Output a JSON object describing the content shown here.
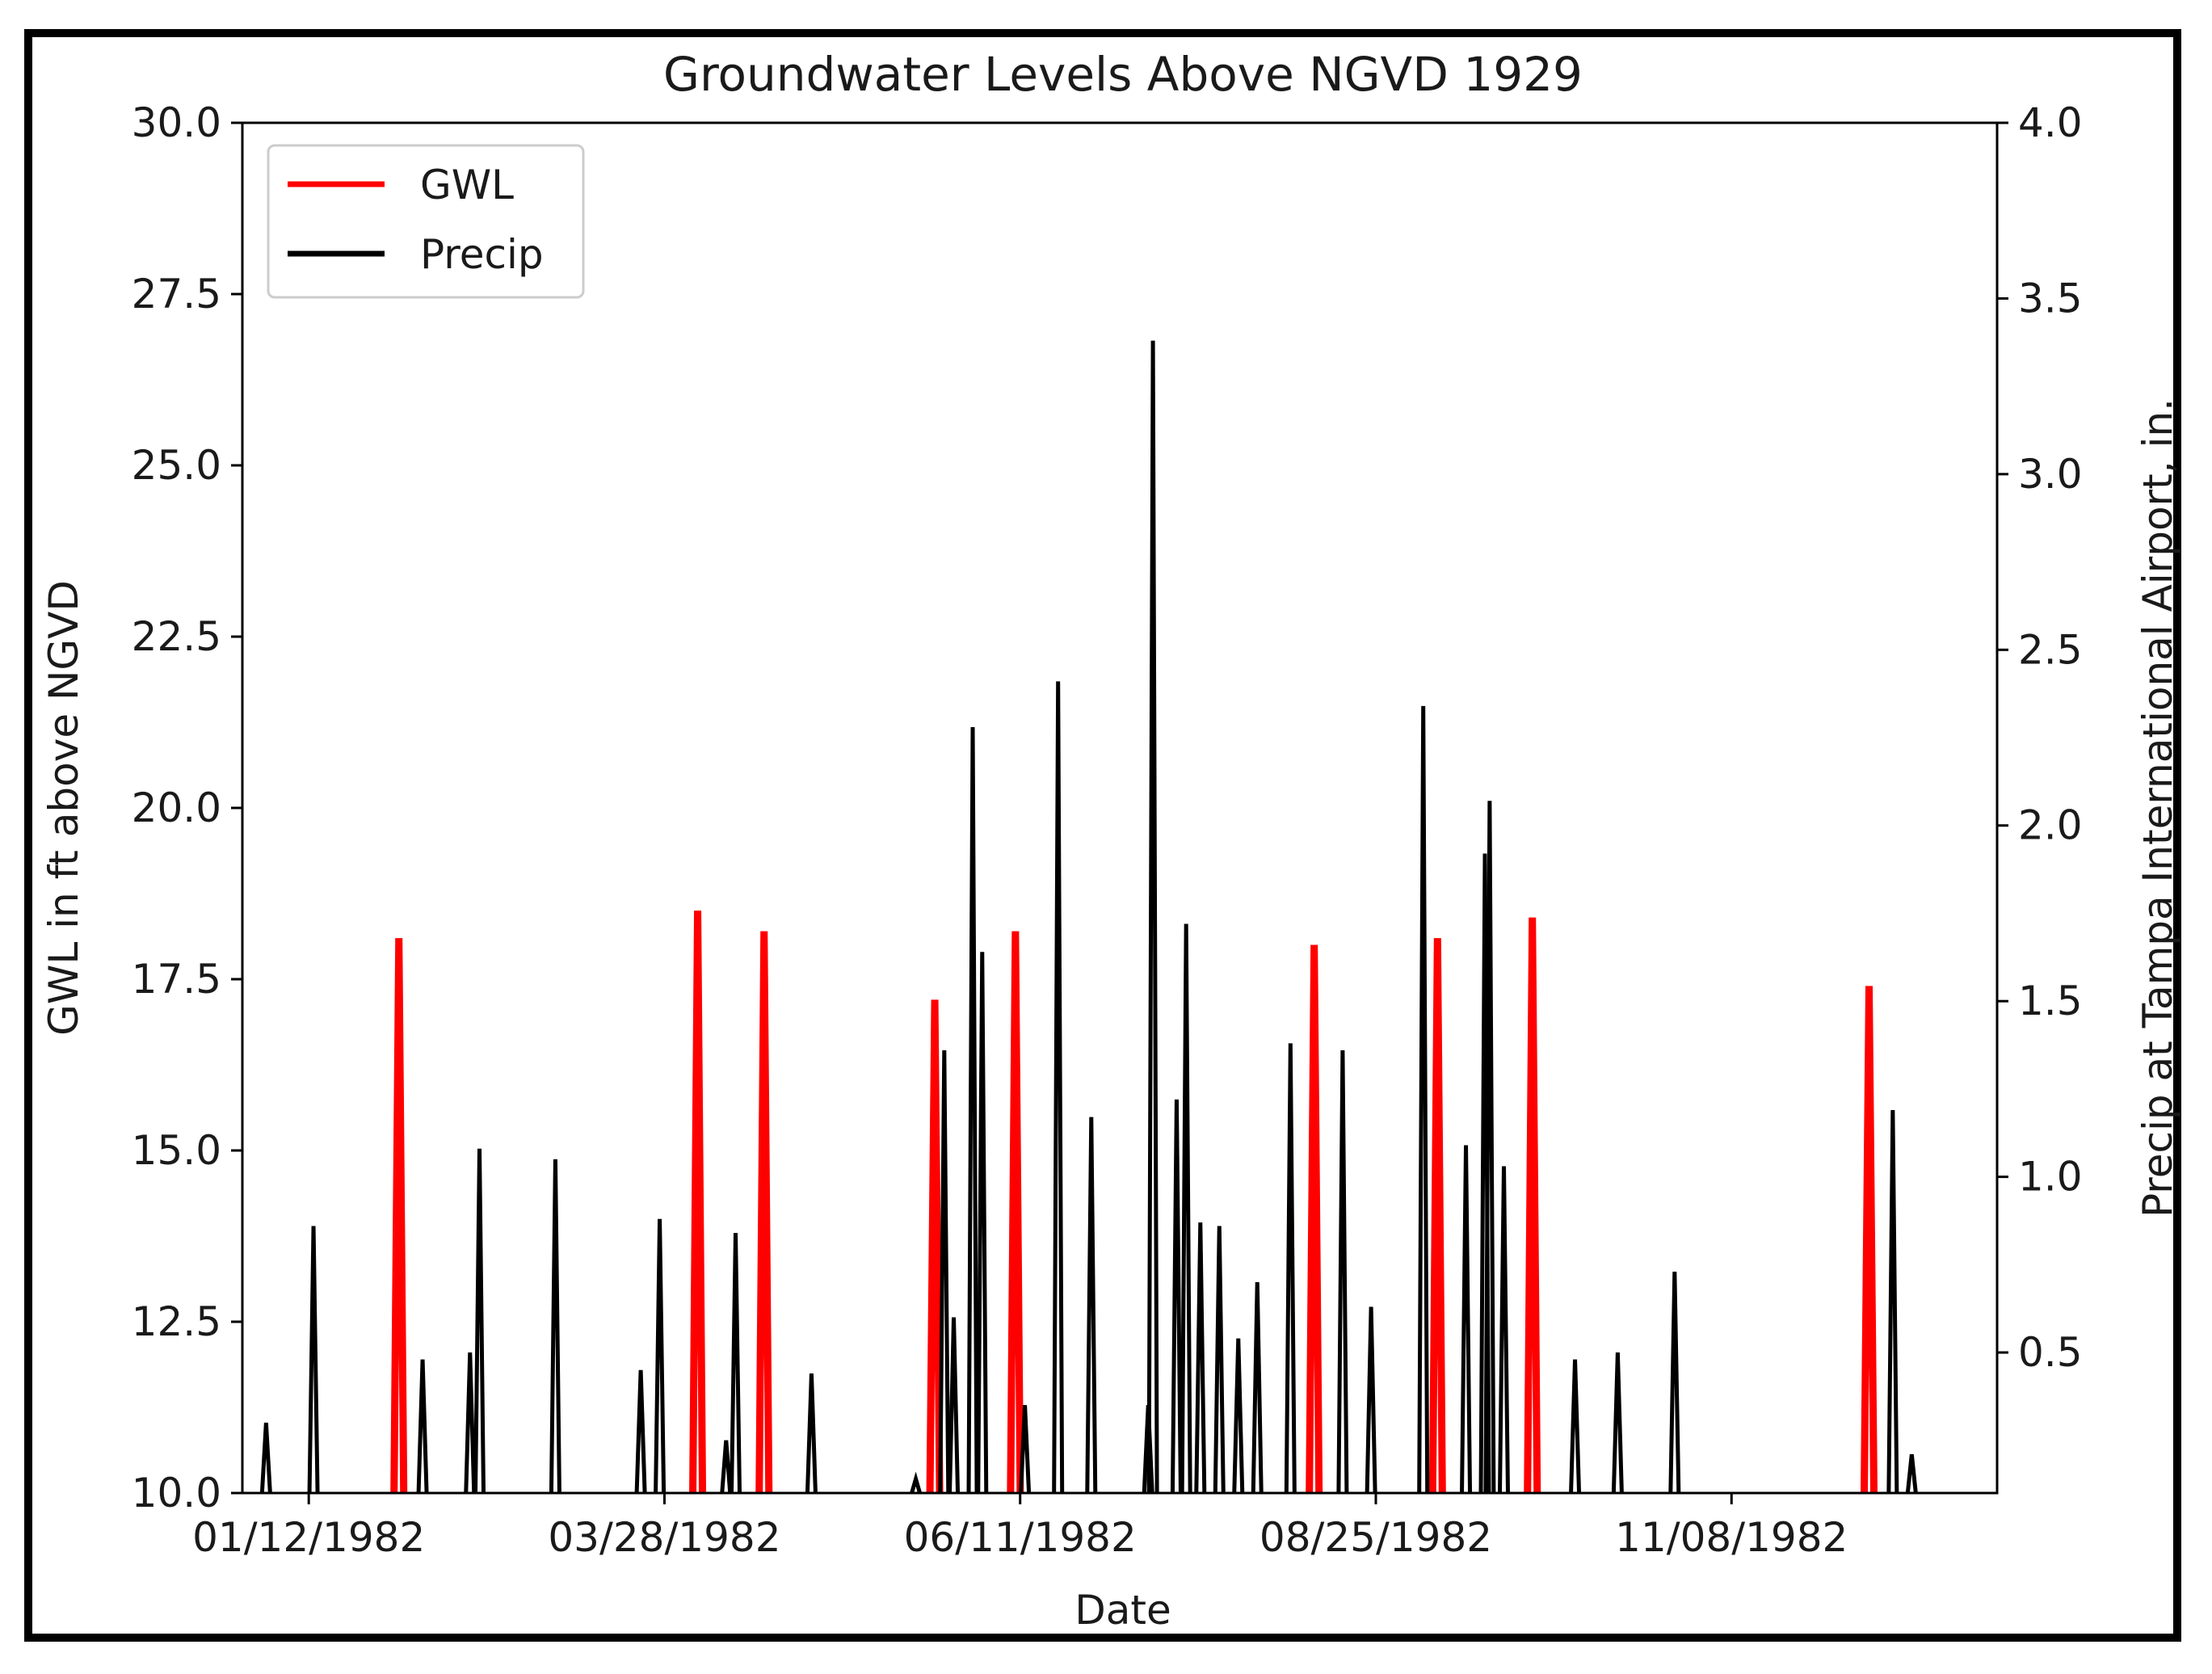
{
  "chart_data": {
    "type": "line",
    "title": "Groundwater Levels Above NGVD 1929",
    "xlabel": "Date",
    "ylabel_left": "GWL in ft above NGVD",
    "ylabel_right": "Precip at Tampa International Airport, in.",
    "x_ticks": [
      "01/12/1982",
      "03/28/1982",
      "06/11/1982",
      "08/25/1982",
      "11/08/1982"
    ],
    "xlim": [
      "1981-12-29",
      "1983-01-03"
    ],
    "ylim_left": [
      10.0,
      30.0
    ],
    "y_ticks_left": [
      "10.0",
      "12.5",
      "15.0",
      "17.5",
      "20.0",
      "22.5",
      "25.0",
      "27.5",
      "30.0"
    ],
    "ylim_right": [
      0.1,
      4.0
    ],
    "y_ticks_right": [
      "0.5",
      "1.0",
      "1.5",
      "2.0",
      "2.5",
      "3.0",
      "3.5",
      "4.0"
    ],
    "legend": {
      "position": "upper left",
      "entries": [
        {
          "label": "GWL",
          "color": "#ff0000"
        },
        {
          "label": "Precip",
          "color": "#000000"
        }
      ]
    },
    "series": [
      {
        "name": "GWL",
        "axis": "left",
        "color": "#ff0000",
        "points": [
          {
            "date": "1982-01-31",
            "value": 18.1
          },
          {
            "date": "1982-04-04",
            "value": 18.5
          },
          {
            "date": "1982-04-18",
            "value": 18.2
          },
          {
            "date": "1982-05-24",
            "value": 17.2
          },
          {
            "date": "1982-06-10",
            "value": 18.2
          },
          {
            "date": "1982-08-12",
            "value": 18.0
          },
          {
            "date": "1982-09-07",
            "value": 18.1
          },
          {
            "date": "1982-09-27",
            "value": 18.4
          },
          {
            "date": "1982-12-07",
            "value": 17.4
          }
        ]
      },
      {
        "name": "Precip",
        "axis": "right",
        "color": "#000000",
        "points": [
          {
            "date": "1982-01-03",
            "value": 0.3
          },
          {
            "date": "1982-01-13",
            "value": 0.86
          },
          {
            "date": "1982-02-05",
            "value": 0.48
          },
          {
            "date": "1982-02-15",
            "value": 0.5
          },
          {
            "date": "1982-02-17",
            "value": 1.08
          },
          {
            "date": "1982-03-05",
            "value": 1.05
          },
          {
            "date": "1982-03-23",
            "value": 0.45
          },
          {
            "date": "1982-03-27",
            "value": 0.88
          },
          {
            "date": "1982-04-10",
            "value": 0.25
          },
          {
            "date": "1982-04-12",
            "value": 0.84
          },
          {
            "date": "1982-04-28",
            "value": 0.44
          },
          {
            "date": "1982-05-20",
            "value": 0.14
          },
          {
            "date": "1982-05-26",
            "value": 1.36
          },
          {
            "date": "1982-05-28",
            "value": 0.6
          },
          {
            "date": "1982-06-01",
            "value": 2.28
          },
          {
            "date": "1982-06-03",
            "value": 1.64
          },
          {
            "date": "1982-06-12",
            "value": 0.35
          },
          {
            "date": "1982-06-19",
            "value": 2.41
          },
          {
            "date": "1982-06-26",
            "value": 1.17
          },
          {
            "date": "1982-07-08",
            "value": 0.35
          },
          {
            "date": "1982-07-09",
            "value": 3.38
          },
          {
            "date": "1982-07-14",
            "value": 1.22
          },
          {
            "date": "1982-07-16",
            "value": 1.72
          },
          {
            "date": "1982-07-19",
            "value": 0.87
          },
          {
            "date": "1982-07-23",
            "value": 0.86
          },
          {
            "date": "1982-07-27",
            "value": 0.54
          },
          {
            "date": "1982-07-31",
            "value": 0.7
          },
          {
            "date": "1982-08-07",
            "value": 1.38
          },
          {
            "date": "1982-08-18",
            "value": 1.36
          },
          {
            "date": "1982-08-24",
            "value": 0.63
          },
          {
            "date": "1982-09-04",
            "value": 2.34
          },
          {
            "date": "1982-09-13",
            "value": 1.09
          },
          {
            "date": "1982-09-17",
            "value": 1.92
          },
          {
            "date": "1982-09-18",
            "value": 2.07
          },
          {
            "date": "1982-09-21",
            "value": 1.03
          },
          {
            "date": "1982-10-06",
            "value": 0.48
          },
          {
            "date": "1982-10-15",
            "value": 0.5
          },
          {
            "date": "1982-10-27",
            "value": 0.73
          },
          {
            "date": "1982-12-12",
            "value": 1.19
          },
          {
            "date": "1982-12-16",
            "value": 0.21
          }
        ]
      }
    ]
  }
}
